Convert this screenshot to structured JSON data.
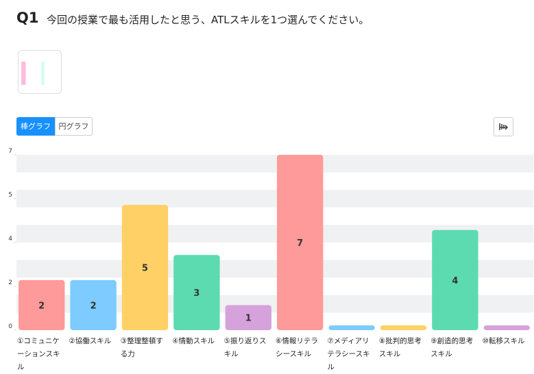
{
  "header": {
    "number": "Q1",
    "question": "今回の授業で最も活用したと思う、ATLスキルを1つ選んでください。"
  },
  "tabs": [
    "棒グラフ",
    "円グラフ"
  ],
  "chart_data": {
    "type": "bar",
    "categories": [
      "①コミュニケーションスキル",
      "②協働スキル",
      "③整理整頓する力",
      "④情動スキル",
      "⑤振り返りスキル",
      "⑥情報リテラシースキル",
      "⑦メディアリテラシースキル",
      "⑧批判的思考スキル",
      "⑨創造的思考スキル",
      "⑩転移スキル"
    ],
    "values": [
      2,
      2,
      5,
      3,
      1,
      7,
      0,
      0,
      4,
      0
    ],
    "colors": [
      "#ff9a9a",
      "#7dcbff",
      "#ffd066",
      "#5ddbb0",
      "#d6a2dc",
      "#ff9a9a",
      "#7dcbff",
      "#ffd066",
      "#5ddbb0",
      "#d6a2dc"
    ],
    "ylim": [
      0,
      7
    ],
    "yticks": [
      0,
      {
        "value": 1.75,
        "label": "2"
      },
      {
        "value": 3.5,
        "label": "4"
      },
      {
        "value": 5.25,
        "label": "5"
      },
      7
    ]
  }
}
